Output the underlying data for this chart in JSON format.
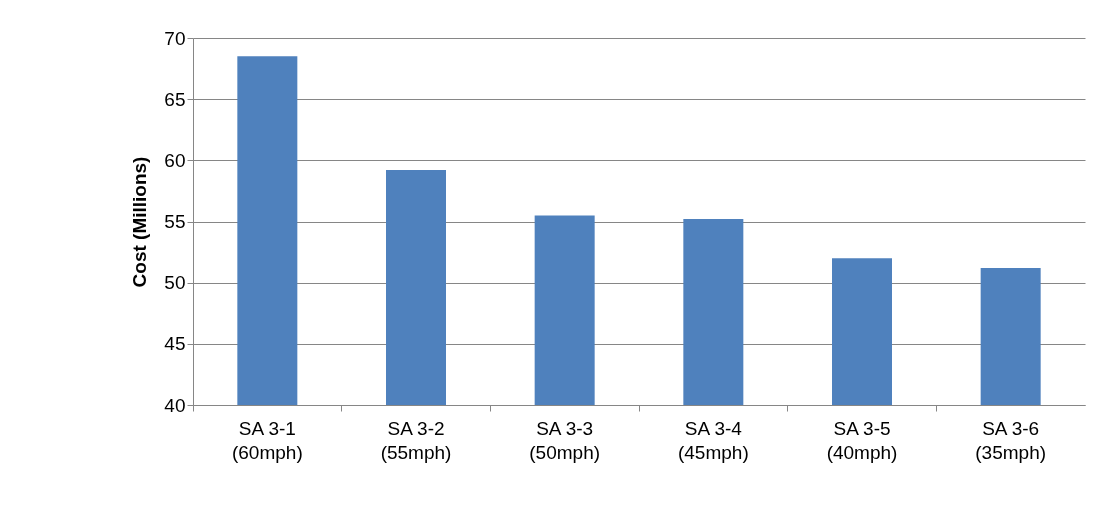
{
  "chart_data": {
    "type": "bar",
    "ylabel": "Cost (Millions)",
    "categories": [
      "SA 3-1\n(60mph)",
      "SA 3-2\n(55mph)",
      "SA 3-3\n(50mph)",
      "SA 3-4\n(45mph)",
      "SA 3-5\n(40mph)",
      "SA 3-6\n(35mph)"
    ],
    "values": [
      68.5,
      59.2,
      55.5,
      55.2,
      52.0,
      51.2
    ],
    "color": "#4f81bd",
    "ylim": [
      40,
      70
    ],
    "yticks": [
      40,
      45,
      50,
      55,
      60,
      65,
      70
    ],
    "grid": "y"
  }
}
